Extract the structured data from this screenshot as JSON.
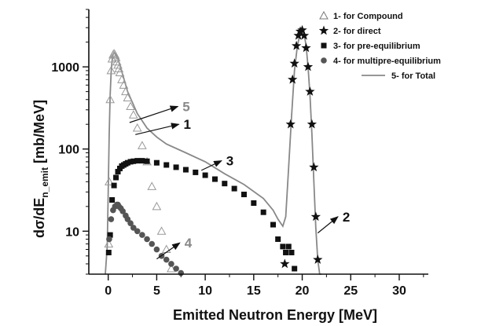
{
  "chart_data": {
    "type": "scatter",
    "title": "",
    "xlabel": "Emitted Neutron Energy [MeV]",
    "ylabel_parts": {
      "pre": "dσ/dE",
      "sub": "n_emit",
      "post": " [mb/MeV]"
    },
    "xlim": [
      -2,
      33
    ],
    "ylim": [
      3,
      5000
    ],
    "yscale": "log",
    "x_ticks": [
      0,
      5,
      10,
      15,
      20,
      25,
      30
    ],
    "x_tick_labels": [
      "0",
      "5",
      "10",
      "15",
      "20",
      "25",
      "30"
    ],
    "y_ticks": [
      10,
      100,
      1000
    ],
    "y_tick_labels": [
      "10",
      "100",
      "1000"
    ],
    "grid": false,
    "legend_position": "top-right",
    "legend": [
      {
        "symbol": "Δ",
        "label": "1- for Compound"
      },
      {
        "symbol": "★",
        "label": "2- for direct"
      },
      {
        "symbol": "■",
        "label": "3- for pre-equilibrium"
      },
      {
        "symbol": "●",
        "label": "4- for multipre-equilibrium"
      },
      {
        "symbol": "—",
        "label": "5- for Total"
      }
    ],
    "series": [
      {
        "label_number": "1",
        "marker": "open-triangle",
        "color": "#999999",
        "x": [
          0.05,
          0.1,
          0.2,
          0.3,
          0.4,
          0.5,
          0.6,
          0.7,
          0.8,
          0.9,
          1.0,
          1.1,
          1.2,
          1.4,
          1.6,
          1.8,
          2.0,
          2.3,
          2.6,
          3.0,
          3.5,
          4.0,
          4.5,
          5.0,
          5.5,
          6.0,
          6.5
        ],
        "y": [
          7,
          40,
          400,
          900,
          1250,
          1400,
          1450,
          1400,
          1300,
          1150,
          1050,
          950,
          850,
          700,
          600,
          500,
          420,
          330,
          260,
          180,
          110,
          70,
          35,
          20,
          10,
          6,
          3.5
        ]
      },
      {
        "label_number": "2",
        "marker": "filled-star",
        "color": "#111111",
        "x": [
          18.2,
          18.8,
          19.0,
          19.2,
          19.4,
          19.6,
          19.8,
          20.0,
          20.2,
          20.4,
          20.6,
          20.8,
          21.0,
          21.2,
          21.4,
          21.6
        ],
        "y": [
          4,
          200,
          700,
          1100,
          1800,
          2400,
          2700,
          2800,
          2400,
          1700,
          1000,
          500,
          200,
          60,
          15,
          4.5
        ]
      },
      {
        "label_number": "3",
        "marker": "filled-square",
        "color": "#111111",
        "x": [
          0.05,
          0.2,
          0.4,
          0.6,
          0.8,
          1.0,
          1.2,
          1.4,
          1.6,
          1.8,
          2.0,
          2.3,
          2.6,
          3.0,
          3.5,
          4.0,
          5.0,
          6.0,
          7.0,
          8.0,
          9.0,
          10.0,
          11.0,
          12.0,
          13.0,
          14.0,
          15.0,
          16.0,
          17.0,
          17.5,
          18.0,
          18.3,
          18.6,
          18.9,
          19.2
        ],
        "y": [
          5.5,
          9,
          24,
          36,
          45,
          53,
          58,
          62,
          64,
          66,
          68,
          70,
          71,
          72,
          72,
          71,
          68,
          64,
          60,
          56,
          52,
          48,
          43,
          38,
          33,
          28,
          22,
          17,
          12,
          8,
          6.5,
          5.5,
          6.5,
          5.5,
          3.5
        ]
      },
      {
        "label_number": "4",
        "marker": "filled-circle",
        "color": "#555555",
        "x": [
          0.1,
          0.3,
          0.5,
          0.7,
          0.9,
          1.0,
          1.1,
          1.3,
          1.5,
          1.8,
          2.0,
          2.3,
          2.6,
          3.0,
          3.5,
          4.0,
          4.5,
          5.0,
          5.5,
          6.0,
          6.5,
          7.0,
          7.5
        ],
        "y": [
          8,
          14,
          18,
          20,
          21,
          21,
          20,
          19,
          17.5,
          15.5,
          14,
          12.5,
          11,
          10,
          9,
          8,
          7,
          6,
          5,
          4.5,
          4,
          3.5,
          3.1
        ]
      },
      {
        "label_number": "5",
        "marker": "line",
        "color": "#888888",
        "x": [
          -0.3,
          -0.1,
          0.0,
          0.1,
          0.2,
          0.3,
          0.4,
          0.5,
          0.6,
          0.8,
          1.0,
          1.5,
          2.0,
          3.0,
          4.0,
          5.0,
          6.0,
          8.0,
          10.0,
          12.0,
          14.0,
          16.0,
          17.0,
          17.5,
          18.0,
          18.3,
          18.6,
          18.9,
          19.2,
          19.5,
          19.8,
          20.0,
          20.2,
          20.4,
          20.6,
          20.8,
          21.0,
          21.2,
          21.4,
          21.6,
          21.8,
          22.0
        ],
        "y": [
          3,
          6.5,
          30,
          150,
          450,
          850,
          1200,
          1420,
          1480,
          1420,
          1250,
          800,
          500,
          270,
          180,
          140,
          115,
          90,
          70,
          50,
          37,
          25,
          18,
          14,
          11.5,
          15,
          60,
          250,
          900,
          1800,
          2600,
          2900,
          2500,
          1800,
          1000,
          450,
          150,
          40,
          11,
          4.5,
          3,
          3
        ]
      }
    ],
    "annotations": [
      {
        "text": "5",
        "color": "#888888",
        "at_x": 2.2,
        "at_y": 210,
        "label_x": 7.5,
        "label_y": 330
      },
      {
        "text": "1",
        "color": "#111111",
        "at_x": 2.8,
        "at_y": 150,
        "label_x": 7.6,
        "label_y": 200
      },
      {
        "text": "3",
        "color": "#111111",
        "at_x": 9.6,
        "at_y": 55,
        "label_x": 12.0,
        "label_y": 72
      },
      {
        "text": "2",
        "color": "#111111",
        "at_x": 21.6,
        "at_y": 9.5,
        "label_x": 24.0,
        "label_y": 15
      },
      {
        "text": "4",
        "color": "#888888",
        "at_x": 5.0,
        "at_y": 4.6,
        "label_x": 7.7,
        "label_y": 7.2
      }
    ]
  }
}
